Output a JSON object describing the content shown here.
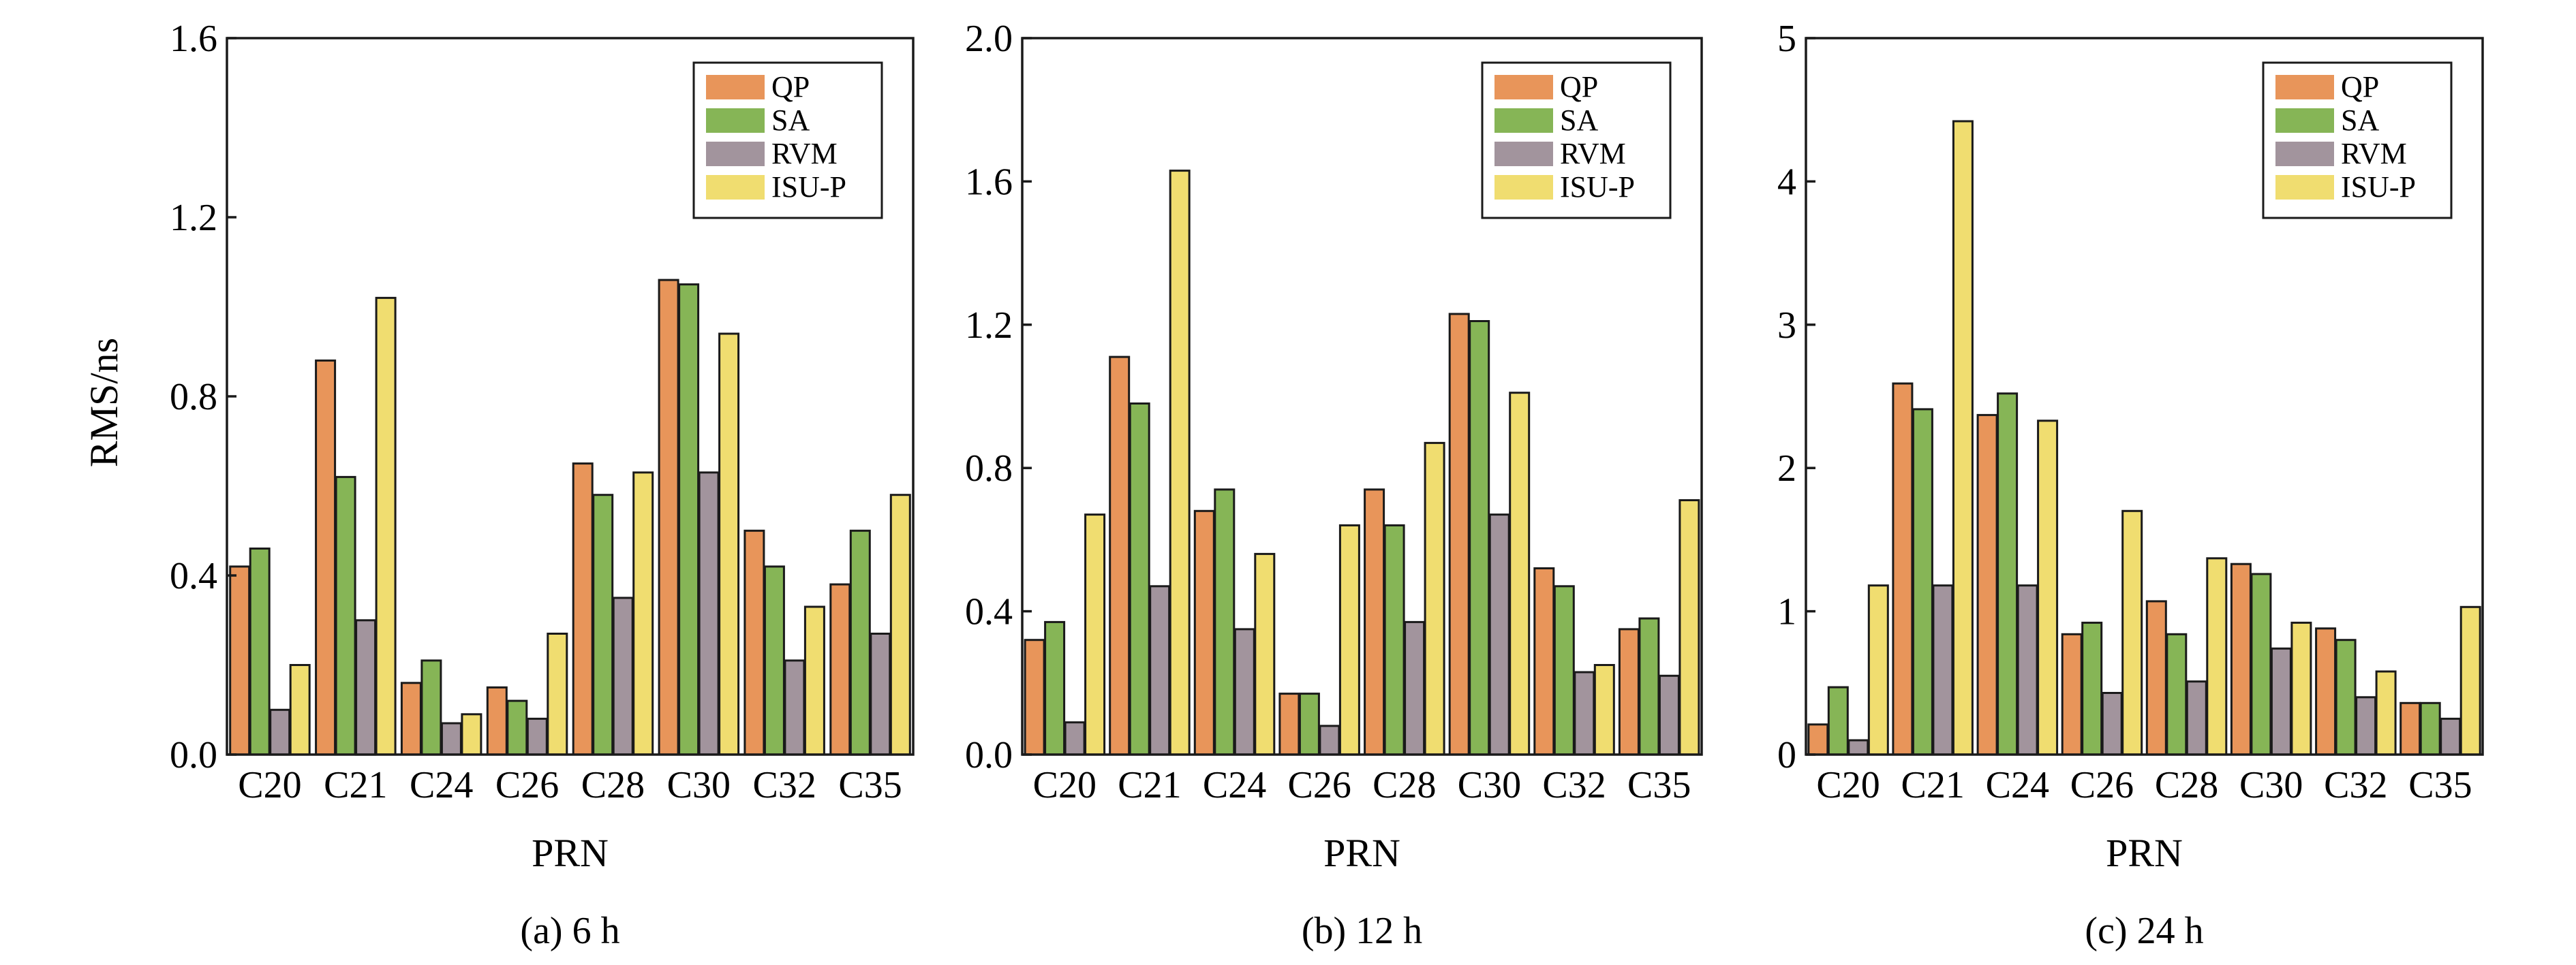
{
  "figure": {
    "legend": [
      {
        "name": "QP",
        "color": "#E8955A"
      },
      {
        "name": "SA",
        "color": "#86B556"
      },
      {
        "name": "RVM",
        "color": "#A2949D"
      },
      {
        "name": "ISU-P",
        "color": "#F0DD70"
      }
    ]
  },
  "chart_data": [
    {
      "type": "bar",
      "id": "a",
      "caption": "(a) 6 h",
      "xlabel": "PRN",
      "ylabel": "RMS/ns",
      "categories": [
        "C20",
        "C21",
        "C24",
        "C26",
        "C28",
        "C30",
        "C32",
        "C35"
      ],
      "ylim": [
        0,
        1.6
      ],
      "yticks": [
        0,
        0.4,
        0.8,
        1.2,
        1.6
      ],
      "ytick_labels": [
        "0.0",
        "0.4",
        "0.8",
        "1.2",
        "1.6"
      ],
      "legend_position": "top-right",
      "series": [
        {
          "name": "QP",
          "color": "#E8955A",
          "values": [
            0.42,
            0.88,
            0.16,
            0.15,
            0.65,
            1.06,
            0.5,
            0.38
          ]
        },
        {
          "name": "SA",
          "color": "#86B556",
          "values": [
            0.46,
            0.62,
            0.21,
            0.12,
            0.58,
            1.05,
            0.42,
            0.5
          ]
        },
        {
          "name": "RVM",
          "color": "#A2949D",
          "values": [
            0.1,
            0.3,
            0.07,
            0.08,
            0.35,
            0.63,
            0.21,
            0.27
          ]
        },
        {
          "name": "ISU-P",
          "color": "#F0DD70",
          "values": [
            0.2,
            1.02,
            0.09,
            0.27,
            0.63,
            0.94,
            0.33,
            0.58
          ]
        }
      ]
    },
    {
      "type": "bar",
      "id": "b",
      "caption": "(b) 12 h",
      "xlabel": "PRN",
      "ylabel": "",
      "categories": [
        "C20",
        "C21",
        "C24",
        "C26",
        "C28",
        "C30",
        "C32",
        "C35"
      ],
      "ylim": [
        0,
        2.0
      ],
      "yticks": [
        0,
        0.4,
        0.8,
        1.2,
        1.6,
        2.0
      ],
      "ytick_labels": [
        "0.0",
        "0.4",
        "0.8",
        "1.2",
        "1.6",
        "2.0"
      ],
      "legend_position": "top-right",
      "series": [
        {
          "name": "QP",
          "color": "#E8955A",
          "values": [
            0.32,
            1.11,
            0.68,
            0.17,
            0.74,
            1.23,
            0.52,
            0.35
          ]
        },
        {
          "name": "SA",
          "color": "#86B556",
          "values": [
            0.37,
            0.98,
            0.74,
            0.17,
            0.64,
            1.21,
            0.47,
            0.38
          ]
        },
        {
          "name": "RVM",
          "color": "#A2949D",
          "values": [
            0.09,
            0.47,
            0.35,
            0.08,
            0.37,
            0.67,
            0.23,
            0.22
          ]
        },
        {
          "name": "ISU-P",
          "color": "#F0DD70",
          "values": [
            0.67,
            1.63,
            0.56,
            0.64,
            0.87,
            1.01,
            0.25,
            0.71
          ]
        }
      ]
    },
    {
      "type": "bar",
      "id": "c",
      "caption": "(c) 24 h",
      "xlabel": "PRN",
      "ylabel": "",
      "categories": [
        "C20",
        "C21",
        "C24",
        "C26",
        "C28",
        "C30",
        "C32",
        "C35"
      ],
      "ylim": [
        0,
        5
      ],
      "yticks": [
        0,
        1,
        2,
        3,
        4,
        5
      ],
      "ytick_labels": [
        "0",
        "1",
        "2",
        "3",
        "4",
        "5"
      ],
      "legend_position": "top-right",
      "series": [
        {
          "name": "QP",
          "color": "#E8955A",
          "values": [
            0.21,
            2.59,
            2.37,
            0.84,
            1.07,
            1.33,
            0.88,
            0.36
          ]
        },
        {
          "name": "SA",
          "color": "#86B556",
          "values": [
            0.47,
            2.41,
            2.52,
            0.92,
            0.84,
            1.26,
            0.8,
            0.36
          ]
        },
        {
          "name": "RVM",
          "color": "#A2949D",
          "values": [
            0.1,
            1.18,
            1.18,
            0.43,
            0.51,
            0.74,
            0.4,
            0.25
          ]
        },
        {
          "name": "ISU-P",
          "color": "#F0DD70",
          "values": [
            1.18,
            4.42,
            2.33,
            1.7,
            1.37,
            0.92,
            0.58,
            1.03
          ]
        }
      ]
    }
  ]
}
